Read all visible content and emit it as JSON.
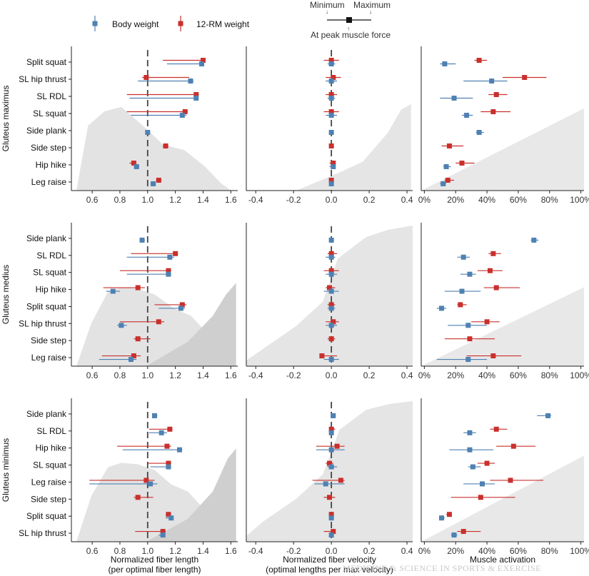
{
  "chart_data": {
    "type": "scatter",
    "legend": {
      "items": [
        {
          "label": "Body weight",
          "color": "#4f81b2"
        },
        {
          "label": "12-RM weight",
          "color": "#c9302c"
        }
      ],
      "key": {
        "min": "Minimum",
        "max": "Maximum",
        "peak": "At peak muscle force"
      }
    },
    "columns": [
      {
        "id": "length",
        "xlabel": [
          "Normalized fiber length",
          "(per optimal fiber length)"
        ],
        "xlim": [
          0.45,
          1.65
        ],
        "ticks": [
          0.6,
          0.8,
          1.0,
          1.2,
          1.4,
          1.6
        ],
        "tick_labels": [
          "0.6",
          "0.8",
          "1.0",
          "1.2",
          "1.4",
          "1.6"
        ],
        "ref": 1.0
      },
      {
        "id": "velocity",
        "xlabel": [
          "Normalized fiber velocity",
          "(optimal lengths per max velocity)"
        ],
        "xlim": [
          -0.45,
          0.43
        ],
        "ticks": [
          -0.4,
          -0.2,
          0.0,
          0.2,
          0.4
        ],
        "tick_labels": [
          "-0.4",
          "-0.2",
          "0.0",
          "0.2",
          "0.4"
        ],
        "ref": 0.0
      },
      {
        "id": "activation",
        "xlabel": [
          "Muscle activation"
        ],
        "xlim": [
          -0.02,
          1.02
        ],
        "ticks": [
          0,
          0.2,
          0.4,
          0.6,
          0.8,
          1.0
        ],
        "tick_labels": [
          "0%",
          "20%",
          "40%",
          "60%",
          "80%",
          "100%"
        ],
        "ref": null
      }
    ],
    "muscles": [
      {
        "name": "Gluteus maximus",
        "exercises": [
          "Split squat",
          "SL hip thrust",
          "SL RDL",
          "SL squat",
          "Side plank",
          "Side step",
          "Hip hike",
          "Leg raise"
        ],
        "length": {
          "body": [
            [
              1.39,
              1.14,
              1.4
            ],
            [
              1.31,
              0.93,
              1.33
            ],
            [
              1.35,
              0.87,
              1.36
            ],
            [
              1.25,
              0.88,
              1.28
            ],
            [
              1.0,
              0.99,
              1.01
            ],
            [
              null,
              null,
              null
            ],
            [
              0.92,
              0.9,
              0.94
            ],
            [
              1.04,
              1.02,
              1.06
            ]
          ],
          "rm": [
            [
              1.4,
              1.11,
              1.41
            ],
            [
              0.99,
              0.96,
              1.3
            ],
            [
              1.35,
              0.85,
              1.37
            ],
            [
              1.27,
              0.85,
              1.29
            ],
            [
              null,
              null,
              null
            ],
            [
              1.13,
              1.11,
              1.15
            ],
            [
              0.9,
              0.87,
              0.92
            ],
            [
              1.08,
              1.06,
              1.1
            ]
          ]
        },
        "velocity": {
          "body": [
            [
              0.0,
              -0.02,
              0.02
            ],
            [
              0.0,
              -0.03,
              0.03
            ],
            [
              0.0,
              -0.02,
              0.02
            ],
            [
              0.0,
              -0.03,
              0.03
            ],
            [
              0.0,
              -0.01,
              0.01
            ],
            [
              null,
              null,
              null
            ],
            [
              0.01,
              -0.01,
              0.02
            ],
            [
              0.0,
              -0.01,
              0.01
            ]
          ],
          "rm": [
            [
              0.0,
              -0.04,
              0.04
            ],
            [
              0.01,
              -0.03,
              0.05
            ],
            [
              0.0,
              -0.03,
              0.03
            ],
            [
              0.0,
              -0.04,
              0.04
            ],
            [
              null,
              null,
              null
            ],
            [
              0.0,
              -0.01,
              0.01
            ],
            [
              0.01,
              -0.01,
              0.02
            ],
            [
              0.0,
              -0.01,
              0.01
            ]
          ]
        },
        "activation": {
          "body": [
            [
              0.13,
              0.1,
              0.2
            ],
            [
              0.43,
              0.25,
              0.53
            ],
            [
              0.19,
              0.1,
              0.31
            ],
            [
              0.27,
              0.24,
              0.31
            ],
            [
              0.35,
              0.33,
              0.38
            ],
            [
              null,
              null,
              null
            ],
            [
              0.14,
              0.12,
              0.17
            ],
            [
              0.12,
              0.1,
              0.14
            ]
          ],
          "rm": [
            [
              0.35,
              0.32,
              0.4
            ],
            [
              0.64,
              0.5,
              0.78
            ],
            [
              0.46,
              0.41,
              0.53
            ],
            [
              0.44,
              0.36,
              0.55
            ],
            [
              null,
              null,
              null
            ],
            [
              0.16,
              0.11,
              0.25
            ],
            [
              0.24,
              0.2,
              0.32
            ],
            [
              0.15,
              0.13,
              0.19
            ]
          ]
        }
      },
      {
        "name": "Gluteus medius",
        "exercises": [
          "Side plank",
          "SL RDL",
          "SL squat",
          "Hip hike",
          "Split squat",
          "SL hip thrust",
          "Side step",
          "Leg raise"
        ],
        "length": {
          "body": [
            [
              0.96,
              0.95,
              0.98
            ],
            [
              1.16,
              0.85,
              1.19
            ],
            [
              1.15,
              0.85,
              1.17
            ],
            [
              0.75,
              0.7,
              0.8
            ],
            [
              1.24,
              1.08,
              1.27
            ],
            [
              0.81,
              0.78,
              0.85
            ],
            [
              null,
              null,
              null
            ],
            [
              0.88,
              0.65,
              0.92
            ]
          ],
          "rm": [
            [
              null,
              null,
              null
            ],
            [
              1.2,
              0.88,
              1.22
            ],
            [
              1.15,
              0.8,
              1.17
            ],
            [
              0.93,
              0.68,
              0.98
            ],
            [
              1.25,
              1.05,
              1.28
            ],
            [
              1.08,
              0.8,
              1.12
            ],
            [
              0.93,
              0.9,
              1.02
            ],
            [
              0.9,
              0.67,
              0.95
            ]
          ]
        },
        "velocity": {
          "body": [
            [
              0.0,
              -0.01,
              0.01
            ],
            [
              0.0,
              -0.03,
              0.02
            ],
            [
              0.0,
              -0.03,
              0.03
            ],
            [
              0.0,
              -0.04,
              0.04
            ],
            [
              0.0,
              -0.02,
              0.02
            ],
            [
              0.0,
              -0.03,
              0.03
            ],
            [
              null,
              null,
              null
            ],
            [
              0.0,
              -0.04,
              0.04
            ]
          ],
          "rm": [
            [
              null,
              null,
              null
            ],
            [
              0.0,
              -0.02,
              0.03
            ],
            [
              0.0,
              -0.04,
              0.04
            ],
            [
              -0.01,
              -0.03,
              0.02
            ],
            [
              0.0,
              -0.02,
              0.02
            ],
            [
              0.01,
              -0.03,
              0.04
            ],
            [
              0.0,
              -0.02,
              0.02
            ],
            [
              -0.05,
              -0.06,
              0.03
            ]
          ]
        },
        "activation": {
          "body": [
            [
              0.7,
              0.68,
              0.73
            ],
            [
              0.25,
              0.21,
              0.29
            ],
            [
              0.29,
              0.23,
              0.33
            ],
            [
              0.24,
              0.13,
              0.36
            ],
            [
              0.11,
              0.08,
              0.14
            ],
            [
              0.28,
              0.15,
              0.4
            ],
            [
              null,
              null,
              null
            ],
            [
              0.28,
              0.08,
              0.4
            ]
          ],
          "rm": [
            [
              null,
              null,
              null
            ],
            [
              0.44,
              0.41,
              0.49
            ],
            [
              0.42,
              0.34,
              0.5
            ],
            [
              0.46,
              0.38,
              0.61
            ],
            [
              0.23,
              0.21,
              0.27
            ],
            [
              0.4,
              0.3,
              0.48
            ],
            [
              0.29,
              0.13,
              0.45
            ],
            [
              0.44,
              0.27,
              0.62
            ]
          ]
        }
      },
      {
        "name": "Gluteus minimus",
        "exercises": [
          "Side plank",
          "SL RDL",
          "Hip hike",
          "SL squat",
          "Leg raise",
          "Side step",
          "Split squat",
          "SL hip thrust"
        ],
        "length": {
          "body": [
            [
              1.05,
              1.04,
              1.07
            ],
            [
              1.1,
              1.01,
              1.14
            ],
            [
              1.23,
              0.82,
              1.25
            ],
            [
              1.15,
              1.02,
              1.17
            ],
            [
              1.02,
              0.58,
              1.07
            ],
            [
              null,
              null,
              null
            ],
            [
              1.17,
              1.13,
              1.18
            ],
            [
              1.11,
              1.08,
              1.13
            ]
          ],
          "rm": [
            [
              null,
              null,
              null
            ],
            [
              1.16,
              1.01,
              1.18
            ],
            [
              1.14,
              0.78,
              1.17
            ],
            [
              1.15,
              1.0,
              1.17
            ],
            [
              0.99,
              0.58,
              1.05
            ],
            [
              0.93,
              0.9,
              1.04
            ],
            [
              1.15,
              1.13,
              1.17
            ],
            [
              1.11,
              0.91,
              1.13
            ]
          ]
        },
        "velocity": {
          "body": [
            [
              0.01,
              0.0,
              0.02
            ],
            [
              0.0,
              -0.01,
              0.01
            ],
            [
              0.0,
              -0.08,
              0.07
            ],
            [
              0.0,
              -0.02,
              0.03
            ],
            [
              -0.03,
              -0.09,
              0.07
            ],
            [
              null,
              null,
              null
            ],
            [
              0.0,
              -0.01,
              0.01
            ],
            [
              0.0,
              -0.01,
              0.01
            ]
          ],
          "rm": [
            [
              null,
              null,
              null
            ],
            [
              0.0,
              -0.01,
              0.02
            ],
            [
              0.03,
              -0.08,
              0.07
            ],
            [
              -0.01,
              -0.03,
              0.01
            ],
            [
              0.05,
              -0.1,
              0.07
            ],
            [
              -0.01,
              -0.04,
              0.02
            ],
            [
              0.0,
              -0.01,
              0.01
            ],
            [
              0.01,
              -0.04,
              0.02
            ]
          ]
        },
        "activation": {
          "body": [
            [
              0.79,
              0.72,
              0.81
            ],
            [
              0.29,
              0.25,
              0.33
            ],
            [
              0.29,
              0.16,
              0.44
            ],
            [
              0.31,
              0.28,
              0.36
            ],
            [
              0.37,
              0.25,
              0.45
            ],
            [
              null,
              null,
              null
            ],
            [
              0.11,
              0.1,
              0.13
            ],
            [
              0.19,
              0.17,
              0.21
            ]
          ],
          "rm": [
            [
              null,
              null,
              null
            ],
            [
              0.46,
              0.42,
              0.53
            ],
            [
              0.57,
              0.46,
              0.71
            ],
            [
              0.4,
              0.34,
              0.45
            ],
            [
              0.55,
              0.42,
              0.76
            ],
            [
              0.36,
              0.17,
              0.58
            ],
            [
              0.16,
              0.14,
              0.17
            ],
            [
              0.25,
              0.21,
              0.36
            ]
          ]
        }
      }
    ],
    "watermark": "MEDICINE & SCIENCE IN SPORTS & EXERCISE"
  }
}
